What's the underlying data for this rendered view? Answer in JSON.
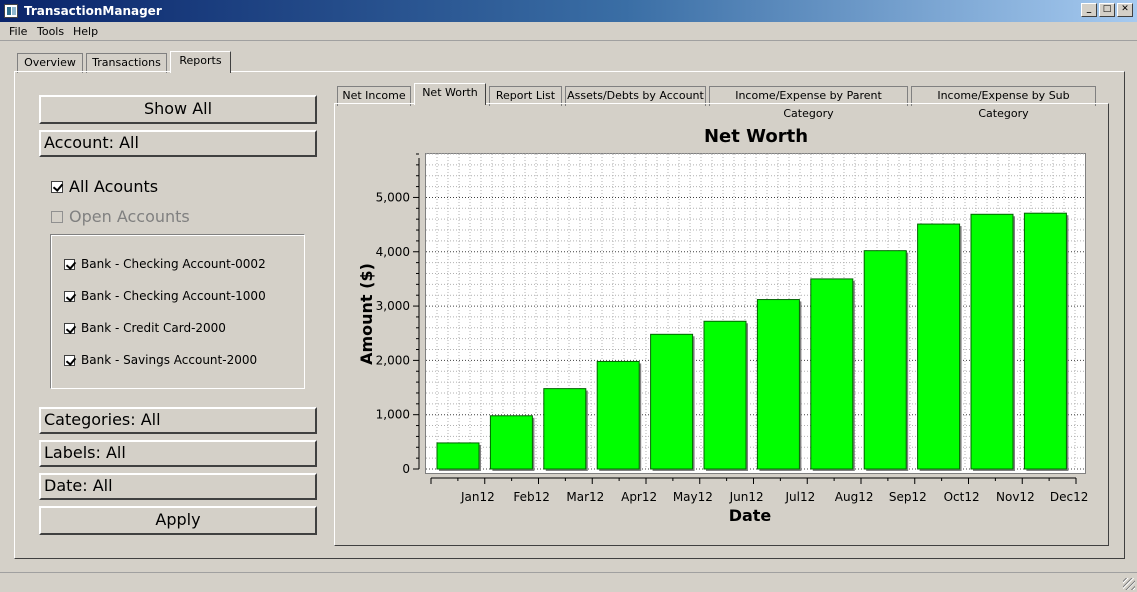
{
  "window": {
    "title": "TransactionManager",
    "minimize_glyph": "_",
    "maximize_glyph": "□",
    "close_glyph": "✕"
  },
  "menu": {
    "file": "File",
    "tools": "Tools",
    "help": "Help"
  },
  "tabs": {
    "overview": "Overview",
    "transactions": "Transactions",
    "reports": "Reports"
  },
  "filters": {
    "show_all": "Show All",
    "account": "Account: All",
    "all_accounts": "All Acounts",
    "open_accounts": "Open Accounts",
    "accounts": [
      {
        "label": "Bank - Checking Account-0002",
        "checked": true
      },
      {
        "label": "Bank - Checking Account-1000",
        "checked": true
      },
      {
        "label": "Bank - Credit Card-2000",
        "checked": true
      },
      {
        "label": "Bank - Savings Account-2000",
        "checked": true
      }
    ],
    "categories": "Categories: All",
    "labels": "Labels: All",
    "date": "Date: All",
    "apply": "Apply"
  },
  "report_tabs": {
    "net_income": "Net Income",
    "net_worth": "Net Worth",
    "report_list": "Report List",
    "assets_debts": "Assets/Debts by Account",
    "income_parent": "Income/Expense by Parent Category",
    "income_sub": "Income/Expense by Sub Category"
  },
  "colors": {
    "bar_fill": "#00ff00",
    "bar_border": "#006400",
    "bar_shadow": "#808080"
  },
  "chart_data": {
    "type": "bar",
    "title": "Net Worth",
    "xlabel": "Date",
    "ylabel": "Amount ($)",
    "categories": [
      "Jan12",
      "Feb12",
      "Mar12",
      "Apr12",
      "May12",
      "Jun12",
      "Jul12",
      "Aug12",
      "Sep12",
      "Oct12",
      "Nov12",
      "Dec12"
    ],
    "values": [
      480,
      980,
      1480,
      1980,
      2480,
      2720,
      3120,
      3500,
      4020,
      4510,
      4690,
      4710
    ],
    "ylim": [
      0,
      5800
    ],
    "yticks": [
      0,
      1000,
      2000,
      3000,
      4000,
      5000
    ],
    "ytick_labels": [
      "0",
      "1,000",
      "2,000",
      "3,000",
      "4,000",
      "5,000"
    ],
    "grid": true
  }
}
